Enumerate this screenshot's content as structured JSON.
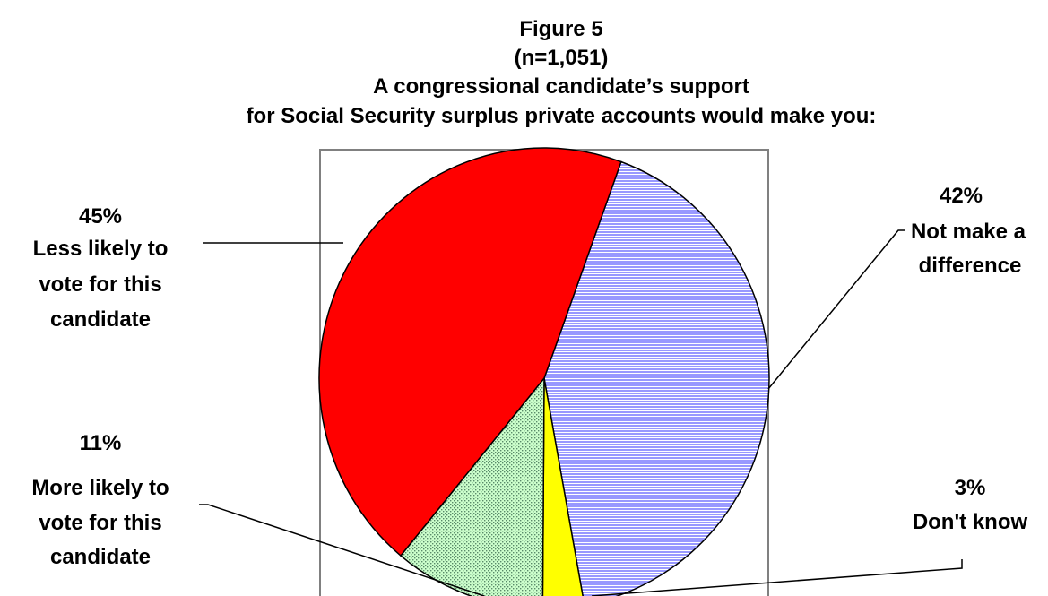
{
  "chart_data": {
    "type": "pie",
    "title": [
      "Figure 5",
      "(n=1,051)",
      "A congressional candidate’s support",
      "for Social Security surplus private accounts would make you:"
    ],
    "slices": [
      {
        "percent": "42%",
        "label": [
          "Not make a",
          "difference"
        ],
        "value": 42,
        "color": "#9999ff",
        "pattern": "horizontal-lines"
      },
      {
        "percent": "3%",
        "label": [
          "Don't know"
        ],
        "value": 3,
        "color": "#ffff00",
        "pattern": "solid"
      },
      {
        "percent": "11%",
        "label": [
          "More likely to",
          "vote for this",
          "candidate"
        ],
        "value": 11,
        "color": "#ccffcc",
        "pattern": "dots"
      },
      {
        "percent": "45%",
        "label": [
          "Less likely to",
          "vote for this",
          "candidate"
        ],
        "value": 45,
        "color": "#ff0000",
        "pattern": "solid"
      }
    ],
    "start_angle_deg": 20,
    "direction": "clockwise",
    "plot_area_border": true,
    "legend": "none"
  }
}
